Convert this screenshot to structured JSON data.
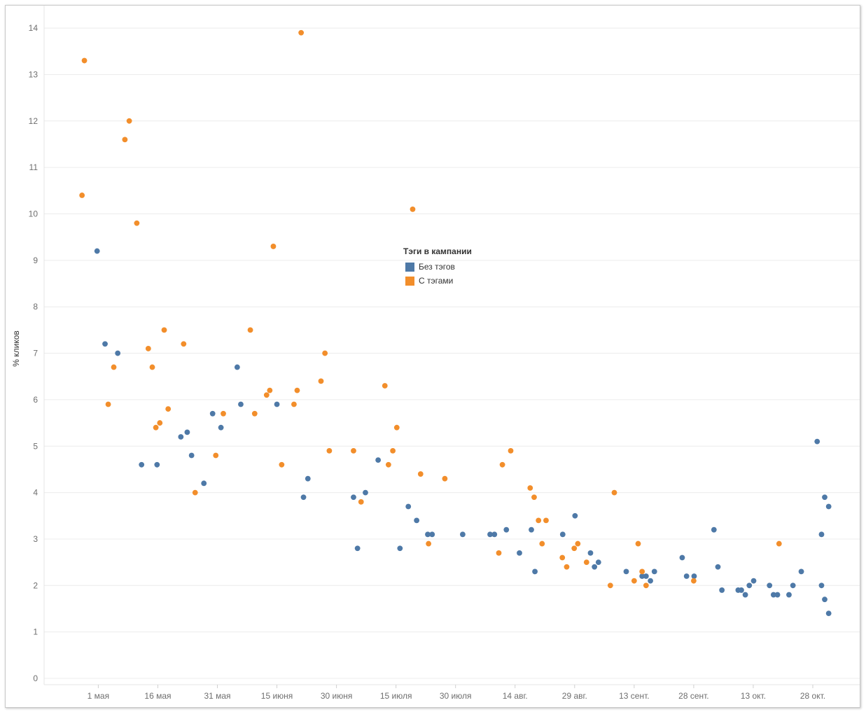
{
  "chart_data": {
    "type": "scatter",
    "ylabel": "% кликов",
    "xlabel": "",
    "ylim": [
      0,
      14.4
    ],
    "yticks": [
      0,
      1,
      2,
      3,
      4,
      5,
      6,
      7,
      8,
      9,
      10,
      11,
      12,
      13,
      14
    ],
    "x_ticks": [
      {
        "label": "1 мая",
        "day": 0
      },
      {
        "label": "16 мая",
        "day": 15
      },
      {
        "label": "31 мая",
        "day": 30
      },
      {
        "label": "15 июня",
        "day": 45
      },
      {
        "label": "30 июня",
        "day": 60
      },
      {
        "label": "15 июля",
        "day": 75
      },
      {
        "label": "30 июля",
        "day": 90
      },
      {
        "label": "14 авг.",
        "day": 105
      },
      {
        "label": "29 авг.",
        "day": 120
      },
      {
        "label": "13 сент.",
        "day": 135
      },
      {
        "label": "28 сент.",
        "day": 150
      },
      {
        "label": "13 окт.",
        "day": 165
      },
      {
        "label": "28 окт.",
        "day": 180
      }
    ],
    "grid": "horizontal",
    "legend": {
      "title": "Тэги в кампании",
      "placement": "center"
    },
    "series": [
      {
        "name": "Без тэгов",
        "color": "#4e79a7",
        "points": [
          [
            -0.3,
            9.2
          ],
          [
            1.7,
            7.2
          ],
          [
            4.9,
            7.0
          ],
          [
            10.9,
            4.6
          ],
          [
            14.8,
            4.6
          ],
          [
            20.8,
            5.2
          ],
          [
            22.4,
            5.3
          ],
          [
            23.5,
            4.8
          ],
          [
            26.6,
            4.2
          ],
          [
            28.8,
            5.7
          ],
          [
            30.9,
            5.4
          ],
          [
            35.0,
            6.7
          ],
          [
            35.9,
            5.9
          ],
          [
            45.0,
            5.9
          ],
          [
            51.7,
            3.9
          ],
          [
            52.8,
            4.3
          ],
          [
            64.3,
            3.9
          ],
          [
            65.3,
            2.8
          ],
          [
            67.3,
            4.0
          ],
          [
            70.5,
            4.7
          ],
          [
            76.0,
            2.8
          ],
          [
            78.1,
            3.7
          ],
          [
            80.2,
            3.4
          ],
          [
            83.0,
            3.1
          ],
          [
            84.1,
            3.1
          ],
          [
            91.8,
            3.1
          ],
          [
            98.7,
            3.1
          ],
          [
            99.8,
            3.1
          ],
          [
            102.8,
            3.2
          ],
          [
            106.1,
            2.7
          ],
          [
            109.1,
            3.2
          ],
          [
            110.0,
            2.3
          ],
          [
            117.0,
            3.1
          ],
          [
            120.1,
            3.5
          ],
          [
            124.0,
            2.7
          ],
          [
            125.0,
            2.4
          ],
          [
            126.0,
            2.5
          ],
          [
            133.0,
            2.3
          ],
          [
            137.0,
            2.2
          ],
          [
            138.0,
            2.2
          ],
          [
            139.1,
            2.1
          ],
          [
            140.1,
            2.3
          ],
          [
            147.1,
            2.6
          ],
          [
            148.2,
            2.2
          ],
          [
            150.1,
            2.2
          ],
          [
            155.1,
            3.2
          ],
          [
            156.1,
            2.4
          ],
          [
            157.1,
            1.9
          ],
          [
            161.2,
            1.9
          ],
          [
            162.0,
            1.9
          ],
          [
            163.0,
            1.8
          ],
          [
            164.0,
            2.0
          ],
          [
            165.1,
            2.1
          ],
          [
            169.1,
            2.0
          ],
          [
            170.1,
            1.8
          ],
          [
            171.1,
            1.8
          ],
          [
            174.0,
            1.8
          ],
          [
            175.0,
            2.0
          ],
          [
            177.1,
            2.3
          ],
          [
            181.1,
            5.1
          ],
          [
            182.2,
            3.1
          ],
          [
            182.2,
            2.0
          ],
          [
            183.0,
            3.9
          ],
          [
            183.0,
            1.7
          ],
          [
            184.0,
            3.7
          ],
          [
            184.0,
            1.4
          ]
        ]
      },
      {
        "name": "С тэгами",
        "color": "#f28e2b",
        "points": [
          [
            -4.1,
            10.4
          ],
          [
            -3.5,
            13.3
          ],
          [
            2.5,
            5.9
          ],
          [
            3.9,
            6.7
          ],
          [
            6.7,
            11.6
          ],
          [
            7.8,
            12.0
          ],
          [
            9.7,
            9.8
          ],
          [
            12.6,
            7.1
          ],
          [
            13.6,
            6.7
          ],
          [
            14.5,
            5.4
          ],
          [
            15.5,
            5.5
          ],
          [
            16.6,
            7.5
          ],
          [
            17.6,
            5.8
          ],
          [
            21.5,
            7.2
          ],
          [
            24.4,
            4.0
          ],
          [
            29.6,
            4.8
          ],
          [
            31.5,
            5.7
          ],
          [
            38.3,
            7.5
          ],
          [
            39.4,
            5.7
          ],
          [
            42.4,
            6.1
          ],
          [
            43.2,
            6.2
          ],
          [
            44.1,
            9.3
          ],
          [
            46.2,
            4.6
          ],
          [
            49.3,
            5.9
          ],
          [
            50.1,
            6.2
          ],
          [
            51.1,
            13.9
          ],
          [
            56.1,
            6.4
          ],
          [
            57.1,
            7.0
          ],
          [
            58.2,
            4.9
          ],
          [
            64.3,
            4.9
          ],
          [
            66.2,
            3.8
          ],
          [
            72.2,
            6.3
          ],
          [
            73.1,
            4.6
          ],
          [
            74.2,
            4.9
          ],
          [
            75.2,
            5.4
          ],
          [
            79.2,
            10.1
          ],
          [
            81.2,
            4.4
          ],
          [
            83.2,
            2.9
          ],
          [
            87.3,
            4.3
          ],
          [
            100.9,
            2.7
          ],
          [
            101.8,
            4.6
          ],
          [
            103.9,
            4.9
          ],
          [
            108.8,
            4.1
          ],
          [
            109.8,
            3.9
          ],
          [
            110.9,
            3.4
          ],
          [
            111.8,
            2.9
          ],
          [
            112.8,
            3.4
          ],
          [
            116.9,
            2.6
          ],
          [
            118.0,
            2.4
          ],
          [
            119.9,
            2.8
          ],
          [
            120.8,
            2.9
          ],
          [
            123.0,
            2.5
          ],
          [
            129.0,
            2.0
          ],
          [
            130.0,
            4.0
          ],
          [
            135.0,
            2.1
          ],
          [
            136.0,
            2.9
          ],
          [
            137.0,
            2.3
          ],
          [
            138.0,
            2.0
          ],
          [
            150.0,
            2.1
          ],
          [
            171.5,
            2.9
          ]
        ]
      }
    ]
  }
}
